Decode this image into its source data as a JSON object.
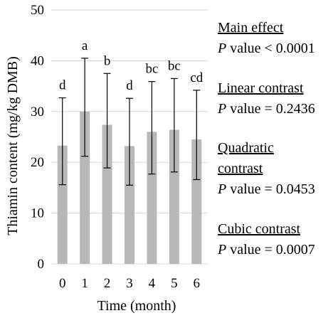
{
  "chart_data": {
    "type": "bar",
    "xlabel": "Time (month)",
    "ylabel": "Thiamin content (mg/kg DMB)",
    "categories": [
      "0",
      "1",
      "2",
      "3",
      "4",
      "5",
      "6"
    ],
    "values": [
      23.3,
      30.0,
      27.4,
      23.2,
      26.0,
      26.4,
      24.5
    ],
    "error_upper": [
      32.7,
      40.5,
      37.5,
      32.6,
      35.9,
      36.5,
      34.2
    ],
    "error_lower": [
      15.6,
      21.2,
      18.9,
      15.5,
      17.7,
      18.1,
      16.6
    ],
    "significance_letters": [
      "d",
      "a",
      "b",
      "d",
      "bc",
      "bc",
      "cd"
    ],
    "ylim": [
      0,
      50
    ],
    "yticks": [
      0,
      10,
      20,
      30,
      40,
      50
    ],
    "grid": true,
    "bar_color": "#b8b8b8"
  },
  "annotations": [
    {
      "heading": "Main effect",
      "stat_label": "P",
      "stat_text": " value < 0.0001"
    },
    {
      "heading": "Linear contrast",
      "stat_label": "P",
      "stat_text": " value = 0.2436"
    },
    {
      "heading_lines": [
        "Quadratic",
        "contrast"
      ],
      "stat_label": "P",
      "stat_text": " value = 0.0453"
    },
    {
      "heading": "Cubic contrast",
      "stat_label": "P",
      "stat_text": " value = 0.0007"
    }
  ]
}
